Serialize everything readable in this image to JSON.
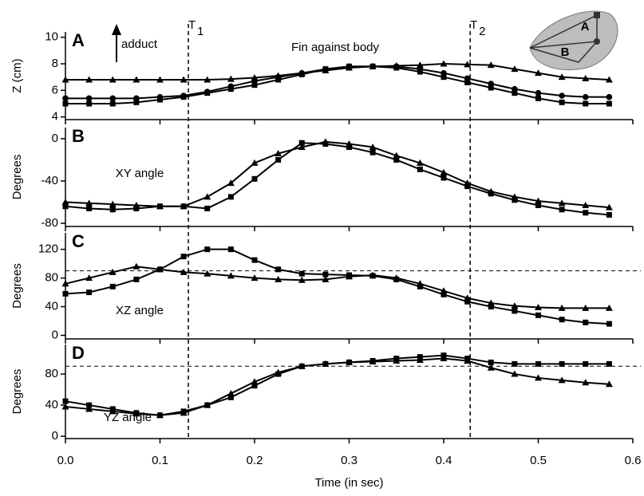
{
  "chart_data": [
    {
      "type": "line",
      "panel_label": "A",
      "ylabel": "Z (cm)",
      "annotations": [
        "adduct",
        "Fin against body"
      ],
      "inset_labels": [
        "A",
        "B"
      ],
      "vlines": [
        {
          "value": 0.13,
          "label": "T",
          "sub": "1"
        },
        {
          "value": 0.428,
          "label": "T",
          "sub": "2"
        }
      ],
      "x": [
        0,
        0.025,
        0.05,
        0.075,
        0.1,
        0.125,
        0.15,
        0.175,
        0.2,
        0.225,
        0.25,
        0.275,
        0.3,
        0.325,
        0.35,
        0.375,
        0.4,
        0.425,
        0.45,
        0.475,
        0.5,
        0.525,
        0.55,
        0.575
      ],
      "xlim": [
        0,
        0.6
      ],
      "ylim": [
        3.8,
        10.4
      ],
      "yticks": [
        4,
        6,
        8,
        10
      ],
      "series": [
        {
          "marker": "square",
          "color": "#000000",
          "values": [
            5.0,
            5.0,
            5.0,
            5.1,
            5.3,
            5.5,
            5.8,
            6.1,
            6.4,
            6.8,
            7.2,
            7.6,
            7.8,
            7.8,
            7.7,
            7.4,
            7.0,
            6.6,
            6.2,
            5.8,
            5.4,
            5.1,
            5.0,
            5.0
          ]
        },
        {
          "marker": "circle",
          "color": "#000000",
          "values": [
            5.4,
            5.4,
            5.4,
            5.4,
            5.5,
            5.6,
            5.9,
            6.3,
            6.7,
            7.0,
            7.3,
            7.6,
            7.8,
            7.8,
            7.8,
            7.6,
            7.3,
            6.9,
            6.5,
            6.1,
            5.8,
            5.6,
            5.5,
            5.5
          ]
        },
        {
          "marker": "triangle",
          "color": "#000000",
          "values": [
            6.8,
            6.8,
            6.8,
            6.8,
            6.8,
            6.8,
            6.8,
            6.85,
            6.95,
            7.1,
            7.3,
            7.5,
            7.7,
            7.8,
            7.85,
            7.9,
            8.0,
            7.95,
            7.9,
            7.6,
            7.3,
            7.0,
            6.9,
            6.8
          ]
        }
      ]
    },
    {
      "type": "line",
      "panel_label": "B",
      "ylabel": "Degrees",
      "annotations": [
        "XY angle"
      ],
      "x": [
        0,
        0.025,
        0.05,
        0.075,
        0.1,
        0.125,
        0.15,
        0.175,
        0.2,
        0.225,
        0.25,
        0.275,
        0.3,
        0.325,
        0.35,
        0.375,
        0.4,
        0.425,
        0.45,
        0.475,
        0.5,
        0.525,
        0.55,
        0.575
      ],
      "xlim": [
        0,
        0.6
      ],
      "ylim": [
        -83,
        10.5
      ],
      "yticks": [
        -80,
        -40,
        0
      ],
      "series": [
        {
          "marker": "square",
          "color": "#000000",
          "values": [
            -64,
            -66,
            -67,
            -66,
            -64,
            -64,
            -66,
            -55,
            -38,
            -20,
            -4,
            -5,
            -8,
            -13,
            -20,
            -29,
            -37,
            -45,
            -52,
            -58,
            -63,
            -67,
            -70,
            -72
          ]
        },
        {
          "marker": "triangle",
          "color": "#000000",
          "values": [
            -60,
            -61,
            -62,
            -63,
            -64,
            -64,
            -55,
            -42,
            -23,
            -14,
            -8,
            -3,
            -5,
            -8,
            -16,
            -23,
            -32,
            -42,
            -50,
            -55,
            -59,
            -61,
            -63,
            -65
          ]
        }
      ]
    },
    {
      "type": "line",
      "panel_label": "C",
      "ylabel": "Degrees",
      "annotations": [
        "XZ angle"
      ],
      "ref_line": 90,
      "x": [
        0,
        0.025,
        0.05,
        0.075,
        0.1,
        0.125,
        0.15,
        0.175,
        0.2,
        0.225,
        0.25,
        0.275,
        0.3,
        0.325,
        0.35,
        0.375,
        0.4,
        0.425,
        0.45,
        0.475,
        0.5,
        0.525,
        0.55,
        0.575
      ],
      "xlim": [
        0,
        0.6
      ],
      "ylim": [
        -5,
        143
      ],
      "yticks": [
        0,
        40,
        80,
        120
      ],
      "series": [
        {
          "marker": "square",
          "color": "#000000",
          "values": [
            58,
            60,
            68,
            78,
            92,
            110,
            120,
            120,
            105,
            92,
            86,
            85,
            84,
            83,
            78,
            68,
            57,
            47,
            40,
            34,
            28,
            22,
            18,
            16
          ]
        },
        {
          "marker": "triangle",
          "color": "#000000",
          "values": [
            72,
            80,
            88,
            96,
            92,
            88,
            86,
            83,
            80,
            78,
            77,
            78,
            82,
            84,
            80,
            72,
            62,
            52,
            45,
            41,
            39,
            38,
            38,
            38
          ]
        }
      ]
    },
    {
      "type": "line",
      "panel_label": "D",
      "ylabel": "Degrees",
      "annotations": [
        "YZ angle"
      ],
      "ref_line": 90,
      "xlabel": "Time (in sec)",
      "x": [
        0,
        0.025,
        0.05,
        0.075,
        0.1,
        0.125,
        0.15,
        0.175,
        0.2,
        0.225,
        0.25,
        0.275,
        0.3,
        0.325,
        0.35,
        0.375,
        0.4,
        0.425,
        0.45,
        0.475,
        0.5,
        0.525,
        0.55,
        0.575
      ],
      "xlim": [
        0,
        0.6
      ],
      "ylim": [
        -3,
        118
      ],
      "yticks": [
        0,
        40,
        80
      ],
      "xticks": [
        {
          "value": 0,
          "label": "0.0"
        },
        0.1,
        0.2,
        0.3,
        0.4,
        0.5,
        0.6
      ],
      "series": [
        {
          "marker": "square",
          "color": "#000000",
          "values": [
            45,
            40,
            35,
            30,
            27,
            32,
            40,
            50,
            65,
            80,
            90,
            93,
            95,
            97,
            100,
            102,
            104,
            100,
            95,
            93,
            93,
            93,
            93,
            93
          ]
        },
        {
          "marker": "triangle",
          "color": "#000000",
          "values": [
            38,
            35,
            32,
            29,
            27,
            30,
            40,
            55,
            70,
            82,
            90,
            93,
            95,
            96,
            97,
            98,
            100,
            97,
            88,
            80,
            75,
            72,
            69,
            67
          ]
        }
      ]
    }
  ]
}
